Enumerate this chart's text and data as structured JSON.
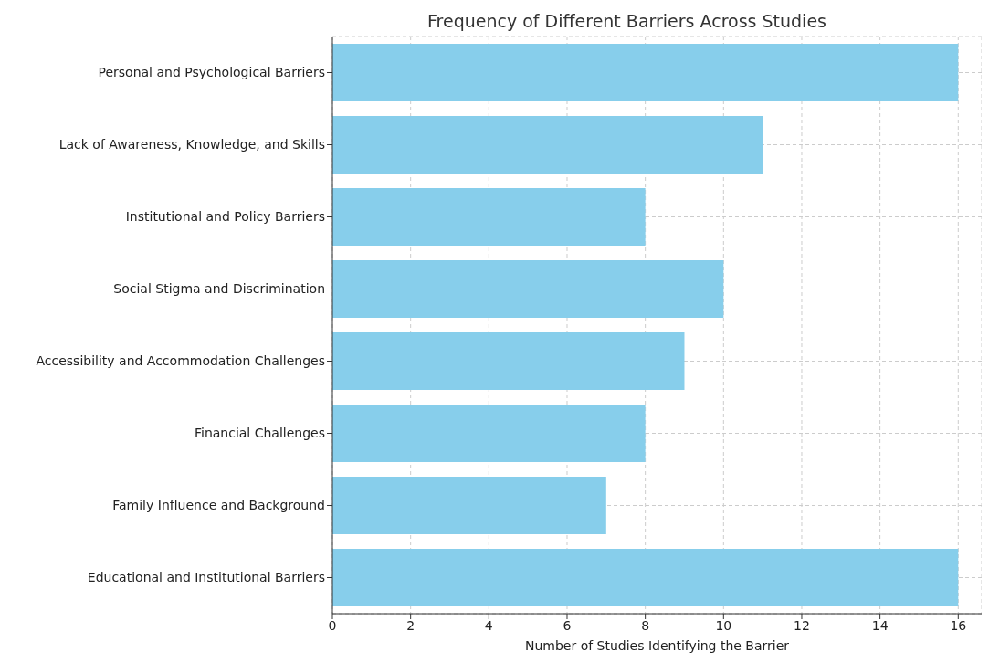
{
  "chart_data": {
    "type": "bar",
    "orientation": "horizontal",
    "title": "Frequency of Different Barriers Across Studies",
    "xlabel": "Number of Studies Identifying the Barrier",
    "categories": [
      "Personal and Psychological Barriers",
      "Lack of Awareness, Knowledge, and Skills",
      "Institutional and Policy Barriers",
      "Social Stigma and Discrimination",
      "Accessibility and Accommodation Challenges",
      "Financial Challenges",
      "Family Influence and Background",
      "Educational and Institutional Barriers"
    ],
    "values": [
      16,
      11,
      8,
      10,
      9,
      8,
      7,
      16
    ],
    "color": "#87ceeb",
    "xlim": [
      0,
      16.6
    ],
    "xticks": [
      0,
      2,
      4,
      6,
      8,
      10,
      12,
      14,
      16
    ],
    "grid": true
  }
}
